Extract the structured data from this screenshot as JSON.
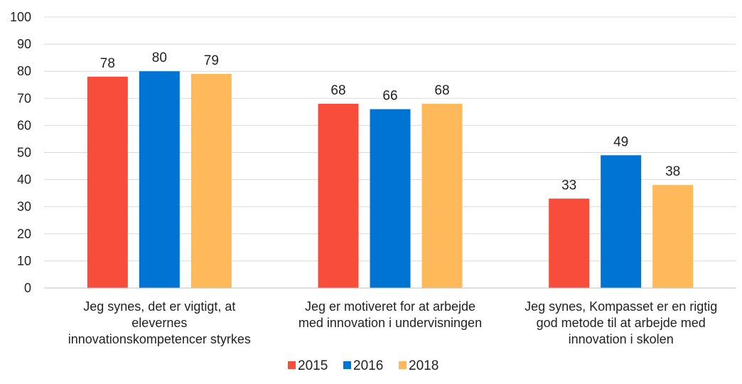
{
  "chart_data": {
    "type": "bar",
    "categories": [
      [
        "Jeg synes, det er vigtigt, at",
        "elevernes",
        "innovationskompetencer styrkes"
      ],
      [
        "Jeg er motiveret for at arbejde",
        "med innovation i undervisningen"
      ],
      [
        "Jeg synes, Kompasset er en rigtig",
        "god metode til at arbejde med",
        "innovation i skolen"
      ]
    ],
    "series": [
      {
        "name": "2015",
        "color": "#f94d3c",
        "values": [
          78,
          68,
          33
        ]
      },
      {
        "name": "2016",
        "color": "#0074d2",
        "values": [
          80,
          66,
          49
        ]
      },
      {
        "name": "2018",
        "color": "#ffb95a",
        "values": [
          79,
          68,
          38
        ]
      }
    ],
    "data_labels": [
      [
        "78",
        "68",
        "33"
      ],
      [
        "80",
        "66",
        "49"
      ],
      [
        "79",
        "68",
        "38"
      ]
    ],
    "y_ticks": [
      "0",
      "10",
      "20",
      "30",
      "40",
      "50",
      "60",
      "70",
      "80",
      "90",
      "100"
    ],
    "ylim": [
      0,
      100
    ],
    "grid": true,
    "legend": "bottom",
    "title": "",
    "xlabel": "",
    "ylabel": ""
  }
}
